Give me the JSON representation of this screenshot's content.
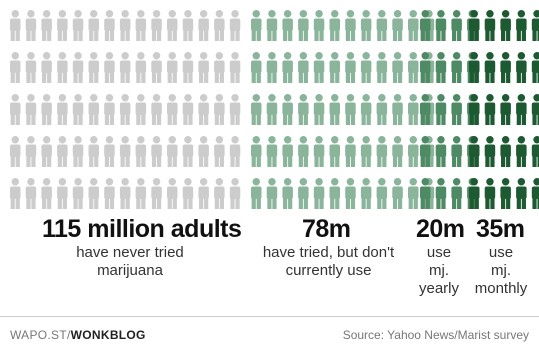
{
  "chart_data": {
    "type": "bar",
    "title": "",
    "unit": "million adults",
    "categories": [
      "have never tried marijuana",
      "have tried, but don't currently use",
      "use mj. yearly",
      "use mj. monthly"
    ],
    "values": [
      115,
      78,
      20,
      35
    ],
    "colors": [
      "#cccccc",
      "#8ab59b",
      "#4e8a64",
      "#1d5a31"
    ],
    "icons_per_row": [
      15,
      12,
      4,
      6
    ],
    "rows": 5,
    "legend": "none",
    "grid": false
  },
  "groups": [
    {
      "big_label": "115 million adults",
      "sub_lines": [
        "have never tried",
        "marijuana"
      ]
    },
    {
      "big_label": "78m",
      "sub_lines": [
        "have tried, but don't",
        "currently use"
      ]
    },
    {
      "big_label": "20m",
      "sub_lines": [
        "use",
        "mj.",
        "yearly"
      ]
    },
    {
      "big_label": "35m",
      "sub_lines": [
        "use",
        "mj.",
        "monthly"
      ]
    }
  ],
  "footer": {
    "site_prefix": "WAPO.ST/",
    "site_name": "WONKBLOG",
    "source": "Source: Yahoo News/Marist survey"
  }
}
